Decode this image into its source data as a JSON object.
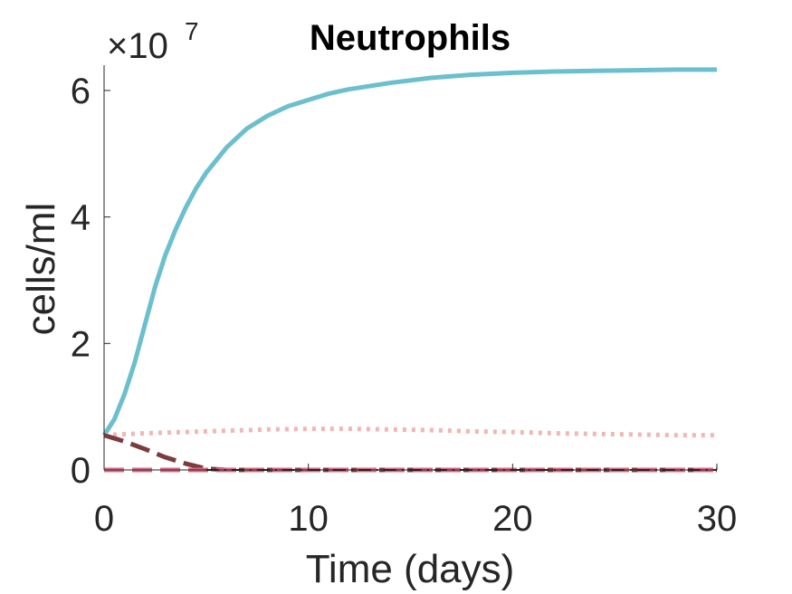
{
  "chart_data": {
    "type": "line",
    "title": "Neutrophils",
    "xlabel": "Time (days)",
    "ylabel": "cells/ml",
    "y_multiplier": "×10",
    "y_multiplier_exponent": "7",
    "xlim": [
      0,
      30
    ],
    "ylim": [
      0,
      6.4
    ],
    "x_ticks": [
      "0",
      "10",
      "20",
      "30"
    ],
    "y_ticks": [
      "0",
      "2",
      "4",
      "6"
    ],
    "x_tick_values": [
      0,
      10,
      20,
      30
    ],
    "y_tick_values": [
      0,
      2,
      4,
      6
    ],
    "grid": false,
    "series": [
      {
        "color": "#6bbfcf",
        "style": "solid",
        "x": [
          0,
          0.5,
          1,
          1.5,
          2,
          2.5,
          3,
          3.5,
          4,
          4.5,
          5,
          6,
          7,
          8,
          9,
          10,
          11,
          12,
          14,
          16,
          18,
          20,
          22,
          24,
          26,
          28,
          30
        ],
        "y": [
          0.55,
          0.8,
          1.2,
          1.7,
          2.3,
          2.9,
          3.4,
          3.8,
          4.15,
          4.45,
          4.7,
          5.1,
          5.4,
          5.6,
          5.75,
          5.85,
          5.95,
          6.02,
          6.12,
          6.2,
          6.25,
          6.28,
          6.3,
          6.31,
          6.32,
          6.33,
          6.33
        ]
      },
      {
        "color": "#f0b7b7",
        "style": "dotted",
        "x": [
          0,
          2,
          4,
          6,
          8,
          10,
          12,
          14,
          16,
          18,
          20,
          22,
          24,
          26,
          28,
          30
        ],
        "y": [
          0.55,
          0.58,
          0.6,
          0.62,
          0.64,
          0.65,
          0.65,
          0.64,
          0.63,
          0.61,
          0.6,
          0.58,
          0.57,
          0.56,
          0.55,
          0.55
        ]
      },
      {
        "color": "#7d3b3f",
        "style": "dashed",
        "x": [
          0,
          1,
          2,
          3,
          4,
          5,
          6,
          10,
          15,
          20,
          25,
          30
        ],
        "y": [
          0.55,
          0.45,
          0.33,
          0.2,
          0.1,
          0.02,
          0,
          0,
          0,
          0,
          0,
          0
        ]
      },
      {
        "color": "#d66681",
        "style": "dashed",
        "x": [
          0,
          5,
          10,
          15,
          20,
          25,
          30
        ],
        "y": [
          0,
          0,
          0,
          0,
          0,
          0,
          0
        ]
      },
      {
        "color": "#222222",
        "style": "dashdot",
        "x": [
          5,
          10,
          15,
          20,
          25,
          30
        ],
        "y": [
          0,
          0,
          0,
          0,
          0,
          0
        ]
      }
    ]
  }
}
